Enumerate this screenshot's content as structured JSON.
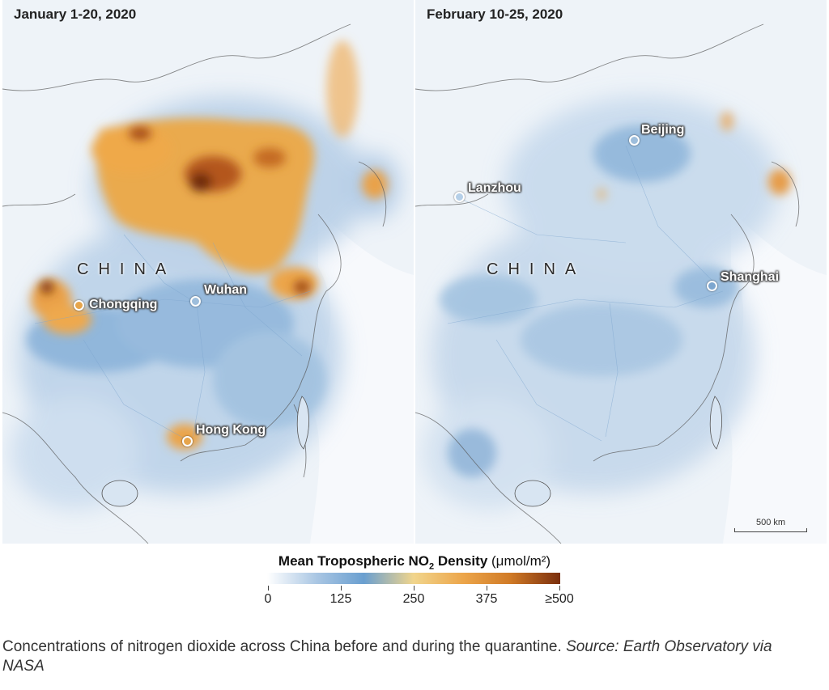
{
  "panels": [
    {
      "title": "January 1-20, 2020",
      "country_label": "CHINA",
      "cities": [
        "Chongqing",
        "Wuhan",
        "Hong Kong"
      ]
    },
    {
      "title": "February 10-25, 2020",
      "country_label": "CHINA",
      "cities": [
        "Beijing",
        "Lanzhou",
        "Shanghai"
      ]
    }
  ],
  "scale_bar": "500 km",
  "legend": {
    "title_main": "Mean Tropospheric NO",
    "title_sub": "2",
    "title_rest": " Density",
    "unit": "(μmol/m²)",
    "ticks": [
      "0",
      "125",
      "250",
      "375",
      "≥500"
    ],
    "colors": [
      "#ffffff",
      "#a9c6e3",
      "#6a9fd0",
      "#f1d58c",
      "#eca54a",
      "#d07a26",
      "#7a2e0d"
    ]
  },
  "caption": {
    "text": "Concentrations of nitrogen dioxide across China before and during the quarantine. ",
    "source": "Source: Earth Observatory via NASA"
  }
}
